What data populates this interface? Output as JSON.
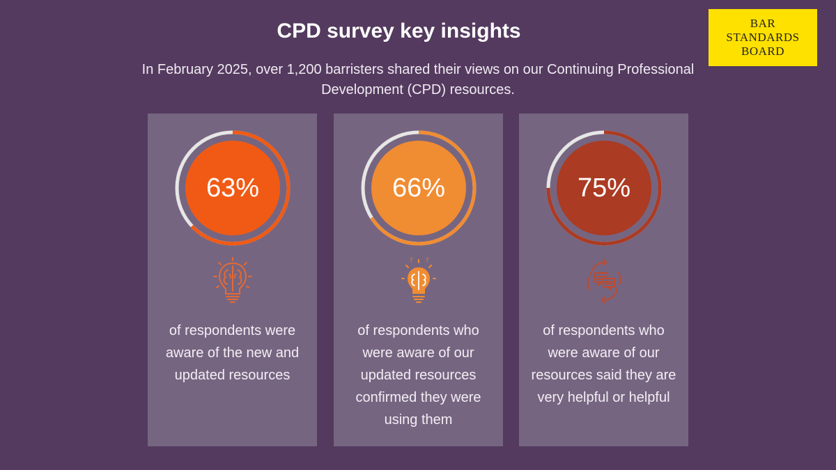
{
  "header": {
    "title": "CPD survey key insights",
    "subtitle": "In February 2025, over 1,200 barristers shared their views on our Continuing Professional Development (CPD) resources."
  },
  "logo": {
    "line1": "BAR",
    "line2": "STANDARDS",
    "line3": "BOARD",
    "background": "#ffe100"
  },
  "colors": {
    "background": "#533a5e",
    "card": "#766580",
    "track": "#e6e6e6"
  },
  "cards": [
    {
      "percent": 63,
      "label": "63%",
      "description": "of respondents were aware of the new and updated resources",
      "color": "#f15a14",
      "icon": "brain-lightbulb-icon"
    },
    {
      "percent": 66,
      "label": "66%",
      "description": "of respondents who were aware of our updated resources confirmed they were using them",
      "color": "#f08c32",
      "icon": "idea-brain-bulb-icon"
    },
    {
      "percent": 75,
      "label": "75%",
      "description": "of respondents who were aware of our resources said they are very helpful or helpful",
      "color": "#ab3b23",
      "icon": "feedback-cycle-icon"
    }
  ]
}
